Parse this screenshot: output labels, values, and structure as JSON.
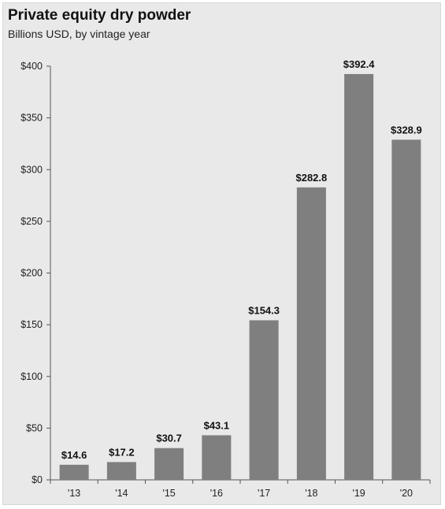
{
  "chart_data": {
    "type": "bar",
    "title": "Private equity dry powder",
    "subtitle": "Billions USD, by vintage year",
    "categories": [
      "'13",
      "'14",
      "'15",
      "'16",
      "'17",
      "'18",
      "'19",
      "'20"
    ],
    "values": [
      14.6,
      17.2,
      30.7,
      43.1,
      154.3,
      282.8,
      392.4,
      328.9
    ],
    "data_labels": [
      "$14.6",
      "$17.2",
      "$30.7",
      "$43.1",
      "$154.3",
      "$282.8",
      "$392.4",
      "$328.9"
    ],
    "y_ticks": [
      0,
      50,
      100,
      150,
      200,
      250,
      300,
      350,
      400
    ],
    "y_tick_labels": [
      "$0",
      "$50",
      "$100",
      "$150",
      "$200",
      "$250",
      "$300",
      "$350",
      "$400"
    ],
    "ylim": [
      0,
      400
    ],
    "grid": false,
    "legend": "none",
    "colors": {
      "bar": "#7f7f7f",
      "axis": "#555555",
      "background": "#e9e9e9"
    }
  }
}
